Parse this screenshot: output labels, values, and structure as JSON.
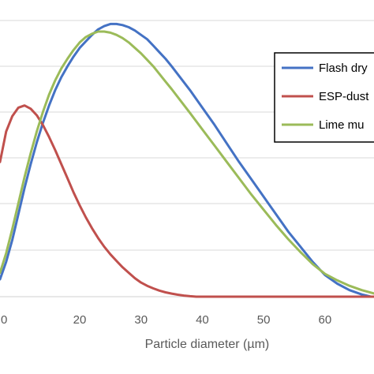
{
  "chart_data": {
    "type": "line",
    "xlabel": "Particle diameter (µm)",
    "ylabel": "",
    "xlim": [
      7,
      68
    ],
    "ylim": [
      0,
      13
    ],
    "x_ticks": [
      "20",
      "30",
      "40",
      "50",
      "60"
    ],
    "grid": "horizontal",
    "legend_position": "top-right",
    "series": [
      {
        "name": "Flash dry",
        "color": "#4472C4",
        "x": [
          7,
          8,
          9,
          10,
          11,
          12,
          13,
          14,
          15,
          16,
          17,
          18,
          19,
          20,
          21,
          22,
          23,
          24,
          25,
          26,
          27,
          28,
          29,
          30,
          31,
          32,
          33,
          34,
          35,
          38,
          40,
          42,
          44,
          46,
          48,
          50,
          52,
          54,
          56,
          58,
          60,
          62,
          64,
          66,
          67.5
        ],
        "y": [
          0.8,
          1.6,
          2.6,
          3.8,
          5.0,
          6.1,
          7.1,
          8.0,
          8.8,
          9.5,
          10.1,
          10.6,
          11.05,
          11.45,
          11.75,
          12.05,
          12.3,
          12.45,
          12.55,
          12.55,
          12.5,
          12.4,
          12.25,
          12.05,
          11.85,
          11.55,
          11.25,
          10.95,
          10.6,
          9.5,
          8.7,
          7.9,
          7.05,
          6.2,
          5.4,
          4.6,
          3.8,
          3.0,
          2.3,
          1.6,
          1.0,
          0.6,
          0.3,
          0.1,
          0.0
        ]
      },
      {
        "name": "ESP-dust",
        "color": "#C0504D",
        "x": [
          7,
          8,
          9,
          10,
          11,
          12,
          13,
          14,
          15,
          16,
          17,
          18,
          19,
          20,
          21,
          22,
          23,
          24,
          25,
          26,
          27,
          28,
          29,
          30,
          31,
          32,
          33,
          34,
          35,
          36,
          37,
          38,
          39,
          40,
          42,
          45,
          50,
          55,
          60,
          65,
          68
        ],
        "y": [
          6.2,
          7.6,
          8.3,
          8.7,
          8.8,
          8.65,
          8.35,
          7.9,
          7.35,
          6.75,
          6.1,
          5.45,
          4.8,
          4.2,
          3.65,
          3.15,
          2.7,
          2.3,
          1.95,
          1.65,
          1.35,
          1.1,
          0.85,
          0.65,
          0.5,
          0.38,
          0.28,
          0.2,
          0.14,
          0.09,
          0.05,
          0.02,
          0.0,
          0.0,
          0.0,
          0.0,
          0.0,
          0.0,
          0.0,
          0.0,
          0.0
        ]
      },
      {
        "name": "Lime mu",
        "color": "#9BBB59",
        "x": [
          7,
          8,
          9,
          10,
          11,
          12,
          13,
          14,
          15,
          16,
          17,
          18,
          19,
          20,
          21,
          22,
          23,
          24,
          25,
          26,
          27,
          28,
          29,
          30,
          31,
          32,
          33,
          34,
          35,
          38,
          40,
          42,
          44,
          46,
          48,
          50,
          52,
          54,
          56,
          58,
          60,
          62,
          64,
          66,
          68
        ],
        "y": [
          1.1,
          2.0,
          3.1,
          4.3,
          5.5,
          6.6,
          7.6,
          8.5,
          9.3,
          9.95,
          10.5,
          10.95,
          11.35,
          11.7,
          11.95,
          12.1,
          12.2,
          12.2,
          12.15,
          12.05,
          11.9,
          11.7,
          11.45,
          11.2,
          10.9,
          10.6,
          10.25,
          9.9,
          9.55,
          8.45,
          7.7,
          6.95,
          6.2,
          5.45,
          4.7,
          4.0,
          3.3,
          2.65,
          2.05,
          1.5,
          1.05,
          0.75,
          0.5,
          0.3,
          0.15
        ]
      }
    ]
  }
}
